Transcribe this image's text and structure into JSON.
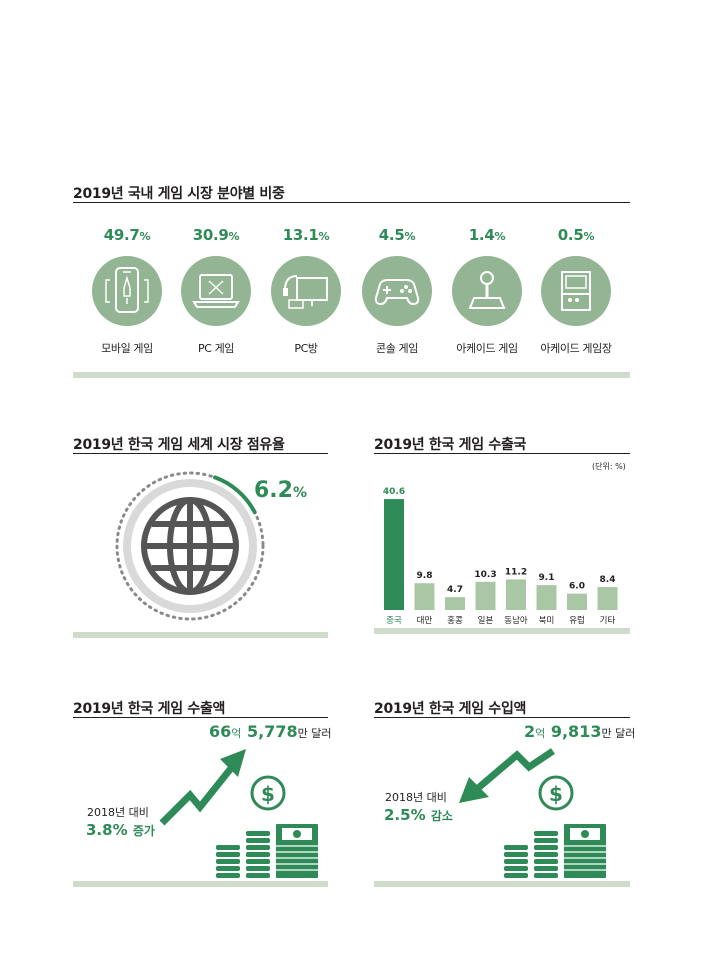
{
  "segments": {
    "title": "2019년 국내 게임 시장 분야별 비중",
    "items": [
      {
        "pct": "49.7",
        "unit": "%",
        "label": "모바일 게임",
        "icon": "mobile-game-icon"
      },
      {
        "pct": "30.9",
        "unit": "%",
        "label": "PC 게임",
        "icon": "laptop-game-icon"
      },
      {
        "pct": "13.1",
        "unit": "%",
        "label": "PC방",
        "icon": "pc-room-icon"
      },
      {
        "pct": "4.5",
        "unit": "%",
        "label": "콘솔 게임",
        "icon": "gamepad-icon"
      },
      {
        "pct": "1.4",
        "unit": "%",
        "label": "아케이드 게임",
        "icon": "joystick-icon"
      },
      {
        "pct": "0.5",
        "unit": "%",
        "label": "아케이드 게임장",
        "icon": "arcade-machine-icon"
      }
    ]
  },
  "share": {
    "title": "2019년 한국 게임 세계 시장 점유율",
    "value": "6.2",
    "unit": "%",
    "fraction": 0.062
  },
  "chart_data": {
    "type": "bar",
    "title": "2019년 한국 게임 수출국",
    "unit_note": "(단위: %)",
    "categories": [
      "중국",
      "대만",
      "홍콩",
      "일본",
      "동남아",
      "북미",
      "유럽",
      "기타"
    ],
    "values": [
      40.6,
      9.8,
      4.7,
      10.3,
      11.2,
      9.1,
      6.0,
      8.4
    ],
    "value_labels": [
      "40.6",
      "9.8",
      "4.7",
      "10.3",
      "11.2",
      "9.1",
      "6.0",
      "8.4"
    ],
    "highlight_index": 0,
    "ylim": [
      0,
      41
    ],
    "grid": false,
    "colors": {
      "highlight": "#2e8b57",
      "normal": "#a9c7a4"
    }
  },
  "export": {
    "title": "2019년 한국 게임 수출액",
    "amount_a": "66",
    "unit_a": "억",
    "amount_b": "5,778",
    "unit_b": "만 달러",
    "compare": "2018년 대비",
    "change": "3.8%",
    "change_word": "증가"
  },
  "import": {
    "title": "2019년 한국 게임 수입액",
    "amount_a": "2",
    "unit_a": "억",
    "amount_b": "9,813",
    "unit_b": "만 달러",
    "compare": "2018년 대비",
    "change": "2.5%",
    "change_word": "감소"
  },
  "colors": {
    "accent": "#2e8b57",
    "light": "#a9c7a4",
    "circle": "#93b593",
    "separator": "#cfdccb"
  }
}
